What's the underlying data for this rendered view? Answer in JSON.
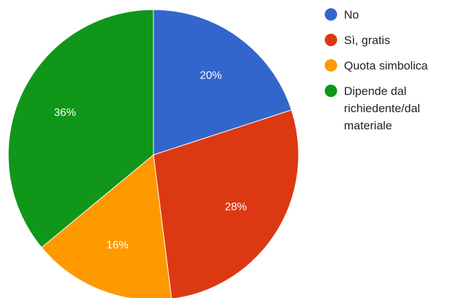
{
  "chart_data": {
    "type": "pie",
    "title": "",
    "categories": [
      "No",
      "Sì, gratis",
      "Quota simbolica",
      "Dipende dal richiedente/dal materiale"
    ],
    "values": [
      20,
      28,
      16,
      36
    ],
    "value_labels": [
      "20%",
      "28%",
      "16%",
      "36%"
    ],
    "colors": [
      "#3366cc",
      "#dc3912",
      "#ff9900",
      "#109618"
    ],
    "start_angle_deg": 0,
    "direction": "clockwise",
    "legend_position": "right"
  }
}
